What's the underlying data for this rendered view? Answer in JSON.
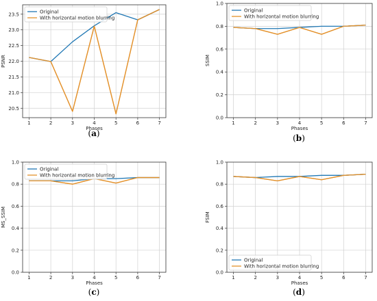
{
  "figure": {
    "colors": {
      "original": "#1f77b4",
      "blurred": "#e3912b",
      "grid": "#d0d0d0",
      "frame": "#333333"
    }
  },
  "chart_data": [
    {
      "type": "line",
      "caption": {
        "open": "(",
        "letter": "a",
        "close": ")"
      },
      "xlabel": "Phases",
      "ylabel": "PSNR",
      "x": [
        1,
        2,
        3,
        4,
        5,
        6,
        7
      ],
      "ylim": [
        20.2,
        23.8
      ],
      "yticks": [
        20.5,
        21.0,
        21.5,
        22.0,
        22.5,
        23.0,
        23.5
      ],
      "ytick_labels": [
        "20.5",
        "21.0",
        "21.5",
        "22.0",
        "22.5",
        "23.0",
        "23.5"
      ],
      "grid": true,
      "legend": "top-left",
      "series": [
        {
          "name": "Original",
          "values": [
            22.12,
            21.99,
            22.62,
            23.13,
            23.55,
            23.32,
            23.65
          ]
        },
        {
          "name": "With horizontal motion blurring",
          "values": [
            22.12,
            21.99,
            20.4,
            23.12,
            20.32,
            23.32,
            23.65
          ]
        }
      ]
    },
    {
      "type": "line",
      "caption": {
        "open": "(",
        "letter": "b",
        "close": ")"
      },
      "xlabel": "Phases",
      "ylabel": "SSIM",
      "x": [
        1,
        2,
        3,
        4,
        5,
        6,
        7
      ],
      "ylim": [
        0.0,
        1.0
      ],
      "yticks": [
        0.0,
        0.2,
        0.4,
        0.6,
        0.8,
        1.0
      ],
      "ytick_labels": [
        "0.0",
        "0.2",
        "0.4",
        "0.6",
        "0.8",
        "1.0"
      ],
      "grid": true,
      "legend": "top-left",
      "series": [
        {
          "name": "Original",
          "values": [
            0.79,
            0.78,
            0.78,
            0.79,
            0.8,
            0.8,
            0.81
          ]
        },
        {
          "name": "With horizontal motion blurring",
          "values": [
            0.79,
            0.78,
            0.73,
            0.79,
            0.73,
            0.8,
            0.81
          ]
        }
      ]
    },
    {
      "type": "line",
      "caption": {
        "open": "(",
        "letter": "c",
        "close": ")"
      },
      "xlabel": "Phases",
      "ylabel": "MS_SSIM",
      "x": [
        1,
        2,
        3,
        4,
        5,
        6,
        7
      ],
      "ylim": [
        0.0,
        1.0
      ],
      "yticks": [
        0.0,
        0.2,
        0.4,
        0.6,
        0.8,
        1.0
      ],
      "ytick_labels": [
        "0.0",
        "0.2",
        "0.4",
        "0.6",
        "0.8",
        "1.0"
      ],
      "grid": true,
      "legend": "top-left",
      "series": [
        {
          "name": "Original",
          "values": [
            0.83,
            0.83,
            0.83,
            0.85,
            0.85,
            0.86,
            0.86
          ]
        },
        {
          "name": "With horizontal motion blurring",
          "values": [
            0.83,
            0.83,
            0.8,
            0.85,
            0.81,
            0.86,
            0.86
          ]
        }
      ]
    },
    {
      "type": "line",
      "caption": {
        "open": "(",
        "letter": "d",
        "close": ")"
      },
      "xlabel": "Phases",
      "ylabel": "FSIM",
      "x": [
        1,
        2,
        3,
        4,
        5,
        6,
        7
      ],
      "ylim": [
        0.0,
        1.0
      ],
      "yticks": [
        0.0,
        0.2,
        0.4,
        0.6,
        0.8,
        1.0
      ],
      "ytick_labels": [
        "0.0",
        "0.2",
        "0.4",
        "0.6",
        "0.8",
        "1.0"
      ],
      "grid": true,
      "legend": "bottom-left",
      "series": [
        {
          "name": "Original",
          "values": [
            0.87,
            0.86,
            0.87,
            0.87,
            0.88,
            0.88,
            0.89
          ]
        },
        {
          "name": "With horizontal motion blurring",
          "values": [
            0.87,
            0.86,
            0.83,
            0.87,
            0.84,
            0.88,
            0.89
          ]
        }
      ]
    }
  ]
}
